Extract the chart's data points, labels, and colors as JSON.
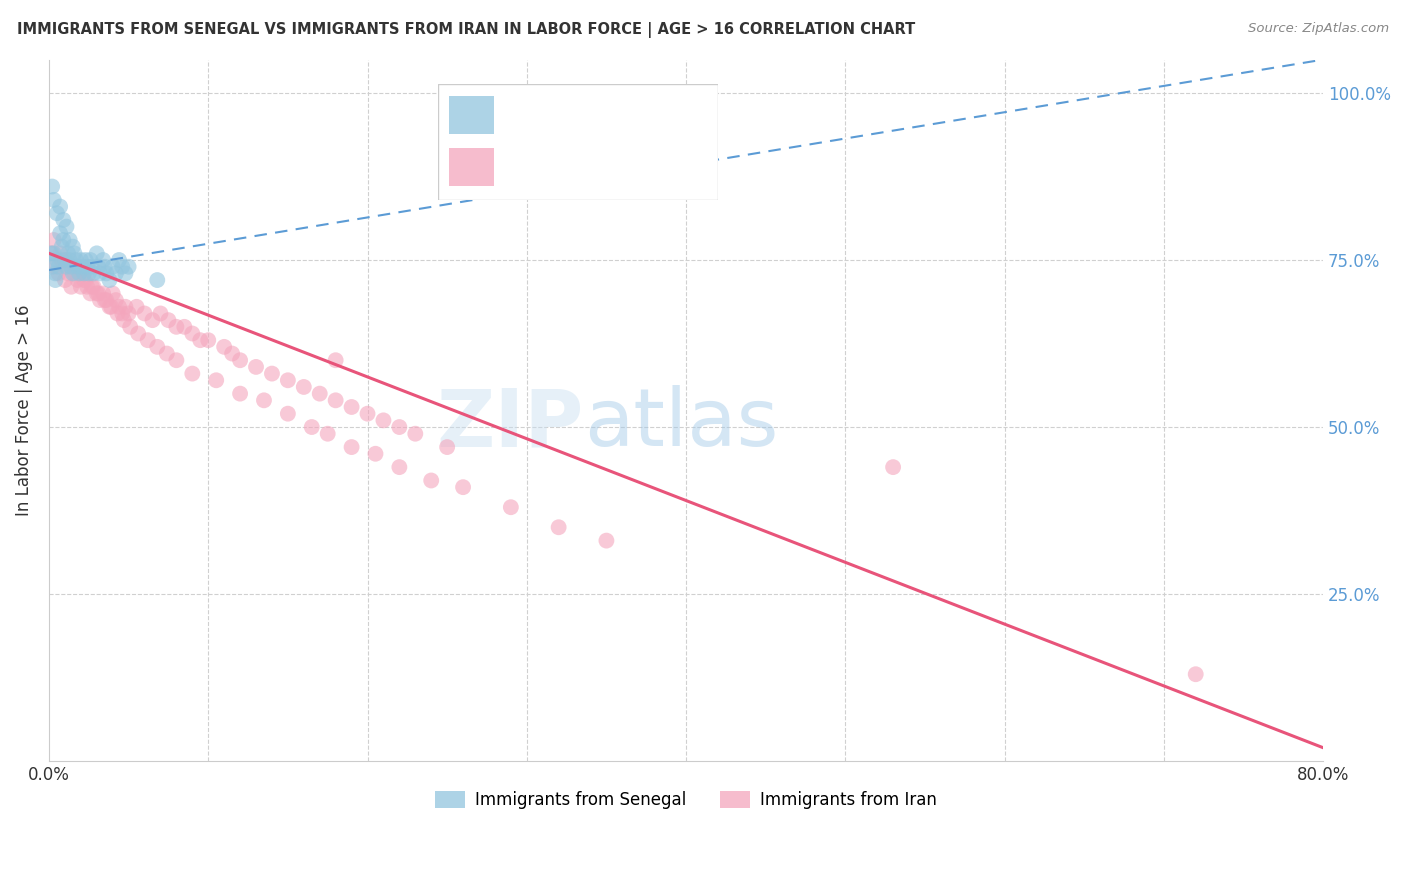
{
  "title": "IMMIGRANTS FROM SENEGAL VS IMMIGRANTS FROM IRAN IN LABOR FORCE | AGE > 16 CORRELATION CHART",
  "source": "Source: ZipAtlas.com",
  "ylabel": "In Labor Force | Age > 16",
  "xlim": [
    0.0,
    0.8
  ],
  "ylim": [
    0.0,
    1.05
  ],
  "yticks": [
    0.0,
    0.25,
    0.5,
    0.75,
    1.0
  ],
  "ytick_labels": [
    "",
    "25.0%",
    "50.0%",
    "75.0%",
    "100.0%"
  ],
  "xticks": [
    0.0,
    0.1,
    0.2,
    0.3,
    0.4,
    0.5,
    0.6,
    0.7,
    0.8
  ],
  "blue_color": "#92c5de",
  "pink_color": "#f4a6bd",
  "blue_line_color": "#5b9bd5",
  "pink_line_color": "#e8547a",
  "watermark_zip": "ZIP",
  "watermark_atlas": "atlas",
  "blue_scatter_x": [
    0.002,
    0.003,
    0.004,
    0.005,
    0.006,
    0.007,
    0.008,
    0.009,
    0.01,
    0.011,
    0.012,
    0.013,
    0.014,
    0.015,
    0.016,
    0.017,
    0.018,
    0.019,
    0.02,
    0.021,
    0.022,
    0.023,
    0.024,
    0.025,
    0.026,
    0.027,
    0.028,
    0.03,
    0.031,
    0.032,
    0.034,
    0.035,
    0.036,
    0.038,
    0.04,
    0.042,
    0.044,
    0.046,
    0.048,
    0.05,
    0.002,
    0.003,
    0.005,
    0.007,
    0.009,
    0.011,
    0.013,
    0.015,
    0.068,
    0.001,
    0.004
  ],
  "blue_scatter_y": [
    0.74,
    0.76,
    0.73,
    0.75,
    0.74,
    0.79,
    0.77,
    0.78,
    0.75,
    0.74,
    0.76,
    0.75,
    0.74,
    0.73,
    0.76,
    0.75,
    0.74,
    0.73,
    0.75,
    0.74,
    0.73,
    0.75,
    0.74,
    0.73,
    0.75,
    0.74,
    0.73,
    0.76,
    0.74,
    0.73,
    0.75,
    0.74,
    0.73,
    0.72,
    0.74,
    0.73,
    0.75,
    0.74,
    0.73,
    0.74,
    0.86,
    0.84,
    0.82,
    0.83,
    0.81,
    0.8,
    0.78,
    0.77,
    0.72,
    0.76,
    0.72
  ],
  "pink_scatter_x": [
    0.002,
    0.004,
    0.006,
    0.008,
    0.01,
    0.012,
    0.014,
    0.016,
    0.018,
    0.02,
    0.022,
    0.024,
    0.026,
    0.028,
    0.03,
    0.032,
    0.034,
    0.036,
    0.038,
    0.04,
    0.042,
    0.044,
    0.046,
    0.048,
    0.05,
    0.055,
    0.06,
    0.065,
    0.07,
    0.075,
    0.08,
    0.085,
    0.09,
    0.095,
    0.1,
    0.11,
    0.115,
    0.12,
    0.13,
    0.14,
    0.15,
    0.16,
    0.17,
    0.18,
    0.19,
    0.2,
    0.21,
    0.22,
    0.23,
    0.25,
    0.003,
    0.007,
    0.011,
    0.015,
    0.019,
    0.023,
    0.027,
    0.031,
    0.035,
    0.039,
    0.043,
    0.047,
    0.051,
    0.056,
    0.062,
    0.068,
    0.074,
    0.08,
    0.09,
    0.105,
    0.12,
    0.135,
    0.15,
    0.165,
    0.175,
    0.19,
    0.205,
    0.22,
    0.24,
    0.26,
    0.29,
    0.32,
    0.18,
    0.35,
    0.53,
    0.72
  ],
  "pink_scatter_y": [
    0.76,
    0.74,
    0.73,
    0.75,
    0.72,
    0.73,
    0.71,
    0.73,
    0.72,
    0.71,
    0.72,
    0.71,
    0.7,
    0.71,
    0.7,
    0.69,
    0.7,
    0.69,
    0.68,
    0.7,
    0.69,
    0.68,
    0.67,
    0.68,
    0.67,
    0.68,
    0.67,
    0.66,
    0.67,
    0.66,
    0.65,
    0.65,
    0.64,
    0.63,
    0.63,
    0.62,
    0.61,
    0.6,
    0.59,
    0.58,
    0.57,
    0.56,
    0.55,
    0.54,
    0.53,
    0.52,
    0.51,
    0.5,
    0.49,
    0.47,
    0.78,
    0.76,
    0.75,
    0.74,
    0.73,
    0.72,
    0.71,
    0.7,
    0.69,
    0.68,
    0.67,
    0.66,
    0.65,
    0.64,
    0.63,
    0.62,
    0.61,
    0.6,
    0.58,
    0.57,
    0.55,
    0.54,
    0.52,
    0.5,
    0.49,
    0.47,
    0.46,
    0.44,
    0.42,
    0.41,
    0.38,
    0.35,
    0.6,
    0.33,
    0.44,
    0.13
  ],
  "senegal_trend_x0": 0.0,
  "senegal_trend_y0": 0.735,
  "senegal_trend_x1": 0.8,
  "senegal_trend_y1": 1.05,
  "iran_trend_x0": 0.0,
  "iran_trend_y0": 0.76,
  "iran_trend_x1": 0.8,
  "iran_trend_y1": 0.02
}
